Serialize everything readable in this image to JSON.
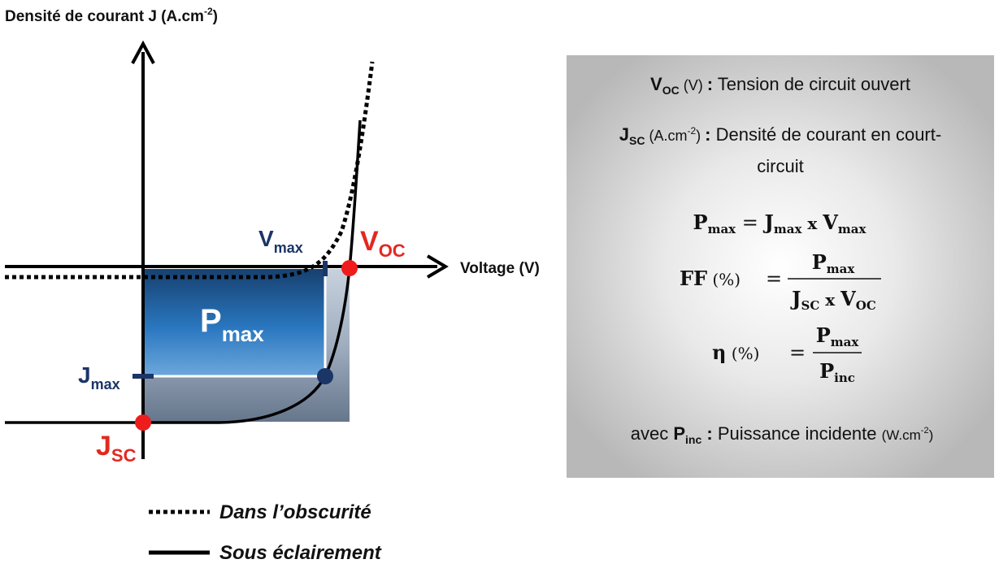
{
  "y_axis_title": {
    "main": "Densité de courant J (A.cm",
    "sup": "-2",
    "close": ")"
  },
  "x_axis_title": "Voltage (V)",
  "points": {
    "voc": {
      "main": "V",
      "sub": "OC"
    },
    "jsc": {
      "main": "J",
      "sub": "SC"
    },
    "vmax": {
      "main": "V",
      "sub": "max"
    },
    "jmax": {
      "main": "J",
      "sub": "max"
    },
    "pmax": {
      "main": "P",
      "sub": "max"
    }
  },
  "legend": {
    "dark": "Dans l’obscurité",
    "light": "Sous éclairement"
  },
  "info": {
    "voc": {
      "sym": "V",
      "sub": "OC",
      "unit": " (V) ",
      "colon": ":",
      "text": " Tension de circuit ouvert"
    },
    "jsc": {
      "sym": "J",
      "sub": "SC",
      "unit": " (A.cm",
      "unit_sup": "-2",
      "unit_close": ") ",
      "colon": ":",
      "text": " Densité de courant en court-",
      "text2": "circuit"
    },
    "eq_pmax": {
      "lhs": "P",
      "lhs_sub": "max",
      "eq": " = ",
      "a": "J",
      "a_sub": "max",
      "x": " x ",
      "b": "V",
      "b_sub": "max"
    },
    "eq_ff": {
      "lhs": "FF",
      "pct": " (%)",
      "eq": "=",
      "num": "P",
      "num_sub": "max",
      "den_a": "J",
      "den_a_sub": "SC",
      "x": " x ",
      "den_b": "V",
      "den_b_sub": "OC"
    },
    "eq_eta": {
      "lhs": "η",
      "pct": " (%)",
      "eq": "=",
      "num": "P",
      "num_sub": "max",
      "den": "P",
      "den_sub": "inc"
    },
    "pinc": {
      "pre": "avec ",
      "sym": "P",
      "sub": "inc",
      "colon": " :",
      "text": " Puissance incidente ",
      "unit": "(W.cm",
      "unit_sup": "-2",
      "unit_close": ")"
    }
  },
  "colors": {
    "red": "#ee1c1c",
    "navy": "#1b3566",
    "label_red": "#e3281f",
    "box_gray": "#b9b9b9"
  }
}
